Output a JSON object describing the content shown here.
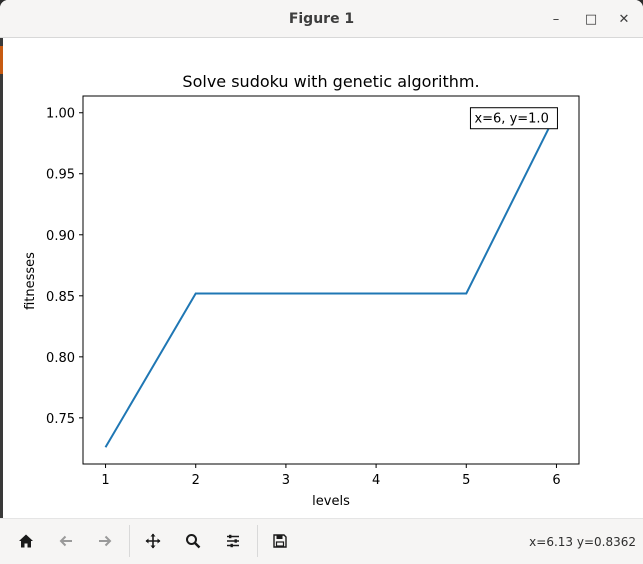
{
  "window": {
    "title": "Figure 1",
    "minimize_glyph": "–",
    "maximize_glyph": "□",
    "close_glyph": "✕"
  },
  "toolbar": {
    "buttons": [
      {
        "name": "home-icon",
        "enabled": true
      },
      {
        "name": "back-arrow-icon",
        "enabled": false
      },
      {
        "name": "forward-arrow-icon",
        "enabled": false
      },
      {
        "name": "pan-icon",
        "enabled": true
      },
      {
        "name": "zoom-icon",
        "enabled": true
      },
      {
        "name": "configure-subplots-icon",
        "enabled": true
      },
      {
        "name": "save-icon",
        "enabled": true
      }
    ],
    "coords_text": "x=6.13 y=0.8362"
  },
  "colors": {
    "line": "#1f77b4",
    "axes": "#000000"
  },
  "chart_data": {
    "type": "line",
    "title": "Solve sudoku with genetic algorithm.",
    "xlabel": "levels",
    "ylabel": "fitnesses",
    "x": [
      1,
      2,
      3,
      4,
      5,
      6
    ],
    "series": [
      {
        "values": [
          0.7259,
          0.8519,
          0.8519,
          0.8519,
          0.8519,
          1.0
        ]
      }
    ],
    "xlim": [
      0.75,
      6.25
    ],
    "ylim": [
      0.7122,
      1.0137
    ],
    "xticks": [
      "1",
      "2",
      "3",
      "4",
      "5",
      "6"
    ],
    "yticks": [
      "0.75",
      "0.80",
      "0.85",
      "0.90",
      "0.95",
      "1.00"
    ],
    "ytick_values": [
      0.75,
      0.8,
      0.85,
      0.9,
      0.95,
      1.0
    ],
    "grid": false,
    "annotation": {
      "text": "x=6, y=1.0",
      "x": 6,
      "y": 1.0
    }
  }
}
